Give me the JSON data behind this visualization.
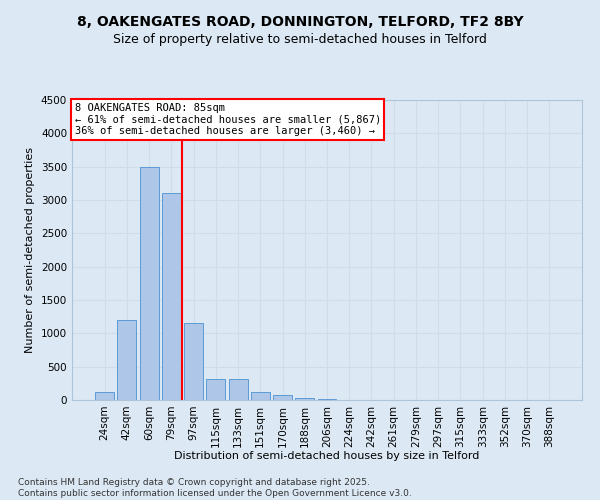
{
  "title": "8, OAKENGATES ROAD, DONNINGTON, TELFORD, TF2 8BY",
  "subtitle": "Size of property relative to semi-detached houses in Telford",
  "xlabel": "Distribution of semi-detached houses by size in Telford",
  "ylabel": "Number of semi-detached properties",
  "categories": [
    "24sqm",
    "42sqm",
    "60sqm",
    "79sqm",
    "97sqm",
    "115sqm",
    "133sqm",
    "151sqm",
    "170sqm",
    "188sqm",
    "206sqm",
    "224sqm",
    "242sqm",
    "261sqm",
    "279sqm",
    "297sqm",
    "315sqm",
    "333sqm",
    "352sqm",
    "370sqm",
    "388sqm"
  ],
  "values": [
    120,
    1200,
    3500,
    3100,
    1150,
    320,
    310,
    120,
    70,
    30,
    10,
    4,
    1,
    0,
    0,
    0,
    0,
    0,
    0,
    0,
    0
  ],
  "bar_color": "#aec6e8",
  "bar_edge_color": "#5b9bd5",
  "red_line_index": 3.5,
  "annotation_text_line1": "8 OAKENGATES ROAD: 85sqm",
  "annotation_text_line2": "← 61% of semi-detached houses are smaller (5,867)",
  "annotation_text_line3": "36% of semi-detached houses are larger (3,460) →",
  "annotation_box_color": "#ffffff",
  "annotation_box_edgecolor": "red",
  "red_line_color": "red",
  "grid_color": "#d0dce8",
  "bg_color": "#dce9f5",
  "ylim": [
    0,
    4500
  ],
  "yticks": [
    0,
    500,
    1000,
    1500,
    2000,
    2500,
    3000,
    3500,
    4000,
    4500
  ],
  "footnote": "Contains HM Land Registry data © Crown copyright and database right 2025.\nContains public sector information licensed under the Open Government Licence v3.0.",
  "title_fontsize": 10,
  "subtitle_fontsize": 9,
  "xlabel_fontsize": 8,
  "ylabel_fontsize": 8,
  "tick_fontsize": 7.5,
  "annotation_fontsize": 7.5,
  "footnote_fontsize": 6.5
}
